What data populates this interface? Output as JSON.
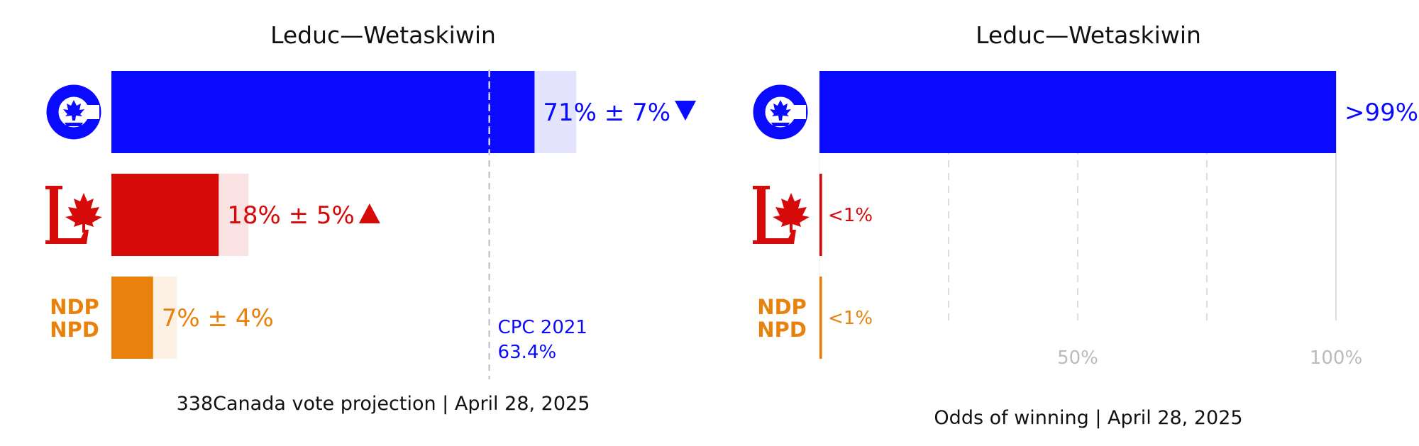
{
  "colors": {
    "cpc": "#0a0aff",
    "lpc": "#d70a0a",
    "ndp": "#e8820c",
    "grid": "#cccccc",
    "tick": "#bbbbbb",
    "text": "#111111"
  },
  "icons": {
    "cpc": "conservative-logo-icon",
    "lpc": "liberal-logo-icon",
    "ndp": "ndp-logo-icon"
  },
  "logo_text": {
    "ndp_line1": "NDP",
    "ndp_line2": "NPD"
  },
  "chart_data": [
    {
      "type": "bar",
      "orientation": "horizontal",
      "title": "Leduc—Wetaskiwin",
      "caption": "338Canada vote projection | April 28, 2025",
      "xlim": [
        0,
        100
      ],
      "bars": [
        {
          "party": "cpc",
          "value": 71,
          "error": 7,
          "label": "71% ± 7%",
          "trend": "down",
          "color": "#0a0aff",
          "band_color": "#e4e4ff"
        },
        {
          "party": "lpc",
          "value": 18,
          "error": 5,
          "label": "18% ± 5%",
          "trend": "up",
          "color": "#d70a0a",
          "band_color": "#fbe2e2"
        },
        {
          "party": "ndp",
          "value": 7,
          "error": 4,
          "label": "7% ± 4%",
          "trend": "none",
          "color": "#e8820c",
          "band_color": "#fdf0e4"
        }
      ],
      "reference_line": {
        "value": 63.4,
        "label_line1": "CPC 2021",
        "label_line2": "63.4%",
        "color": "#0a0aff"
      }
    },
    {
      "type": "bar",
      "orientation": "horizontal",
      "title": "Leduc—Wetaskiwin",
      "caption": "Odds of winning | April 28, 2025",
      "xlim": [
        0,
        100
      ],
      "grid": true,
      "gridlines": [
        25,
        50,
        75,
        100
      ],
      "ticks": [
        {
          "value": 50,
          "label": "50%"
        },
        {
          "value": 100,
          "label": "100%"
        }
      ],
      "bars": [
        {
          "party": "cpc",
          "value": 100,
          "label": ">99%",
          "color": "#0a0aff"
        },
        {
          "party": "lpc",
          "value": 0.5,
          "label": "<1%",
          "color": "#d70a0a"
        },
        {
          "party": "ndp",
          "value": 0.5,
          "label": "<1%",
          "color": "#e8820c"
        }
      ]
    }
  ]
}
